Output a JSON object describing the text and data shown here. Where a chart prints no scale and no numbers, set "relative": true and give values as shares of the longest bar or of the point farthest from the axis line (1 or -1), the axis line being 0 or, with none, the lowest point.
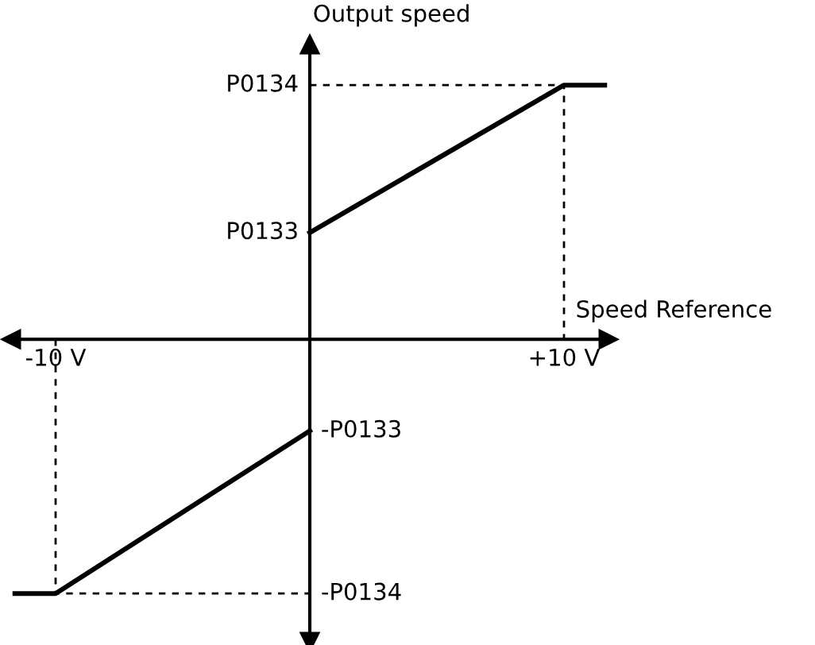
{
  "chart_data": {
    "type": "line",
    "xlabel": "Speed Reference",
    "ylabel": "Output speed",
    "xlim": [
      -11.75,
      11.75
    ],
    "xticks": [
      {
        "value": -10,
        "label": "-10 V"
      },
      {
        "value": 10,
        "label": "+10 V"
      }
    ],
    "relative": true,
    "annotations": [
      "P0134",
      "P0133",
      "-P0133",
      "-P0134"
    ],
    "grid": false,
    "legend": false,
    "marker": "none",
    "series": [
      {
        "color": "#000000",
        "line_style": "solid",
        "x": [
          0,
          10,
          11.6
        ],
        "values": [
          0.42,
          1,
          1
        ]
      },
      {
        "color": "#000000",
        "line_style": "solid",
        "x": [
          -11.6,
          -10,
          0
        ],
        "values": [
          -1,
          -1,
          -0.36
        ]
      },
      {
        "color": "#000000",
        "line_style": "dashed",
        "x": [
          0,
          10,
          10
        ],
        "values": [
          1,
          1,
          0
        ]
      },
      {
        "color": "#000000",
        "line_style": "dashed",
        "x": [
          -10,
          -10,
          0
        ],
        "values": [
          0,
          -1,
          -1
        ]
      }
    ]
  }
}
